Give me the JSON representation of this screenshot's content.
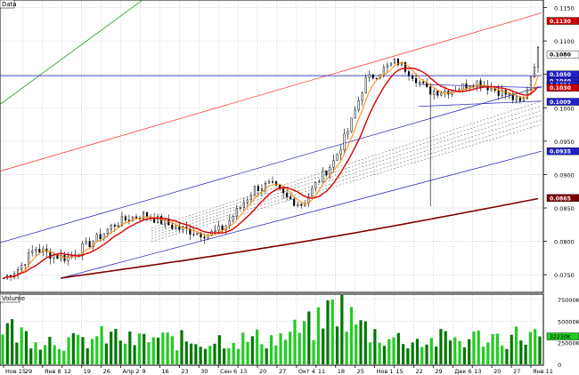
{
  "chart_data": {
    "type": "candlestick",
    "panels": {
      "price": {
        "label": "Data",
        "ylim": [
          0.0725,
          0.116
        ]
      },
      "volume": {
        "label": "Volume",
        "ylim": [
          0,
          80000
        ]
      }
    },
    "price_ticks": [
      "0.1150",
      "0.1100",
      "0.1050",
      "0.1000",
      "0.0950",
      "0.0900",
      "0.0850",
      "0.0800",
      "0.0750"
    ],
    "volume_ticks": [
      "75000K",
      "50000K",
      "25000K",
      "0"
    ],
    "x_tick_labels": [
      "Нов 15",
      "29",
      "Янв 8",
      "12",
      "19",
      "26",
      "Апр 2",
      "9",
      "16",
      "23",
      "30",
      "Сен 6",
      "13",
      "20",
      "27",
      "Окт 4",
      "11",
      "18",
      "25",
      "Нов 1",
      "15",
      "22",
      "29",
      "Дек 6",
      "13",
      "20",
      "27",
      "Янв 11"
    ],
    "value_tags": [
      {
        "label": "0.1130",
        "value": 0.113,
        "color": "#cc0000"
      },
      {
        "label": "0.1080",
        "value": 0.108,
        "color": "#ffffff"
      },
      {
        "label": "0.1050",
        "value": 0.105,
        "color": "#2020cc"
      },
      {
        "label": "0.1040",
        "value": 0.104,
        "color": "#2020cc"
      },
      {
        "label": "0.1034",
        "value": 0.1034,
        "color": "#2020cc"
      },
      {
        "label": "0.1030",
        "value": 0.103,
        "color": "#cc0000"
      },
      {
        "label": "0.1009",
        "value": 0.1009,
        "color": "#2020cc"
      },
      {
        "label": "0.0935",
        "value": 0.0935,
        "color": "#2020cc"
      },
      {
        "label": "0.0865",
        "value": 0.0865,
        "color": "#800000"
      }
    ],
    "volume_tag": {
      "label": "32230K",
      "value": 32230
    },
    "colors": {
      "up_volume": "#22cc22",
      "down_volume": "#007700",
      "ma_fast": "#ff8800",
      "ma_mid": "#dd0000",
      "ma_slow": "#800000",
      "channel_blue": "#3030c0",
      "channel_red": "#ff4040",
      "green_trend": "#22a022",
      "grid": "#aaaaaa"
    },
    "ohlc_anchors": [
      0.0745,
      0.076,
      0.079,
      0.078,
      0.0775,
      0.079,
      0.0805,
      0.0825,
      0.0835,
      0.084,
      0.083,
      0.082,
      0.0815,
      0.081,
      0.082,
      0.085,
      0.088,
      0.0885,
      0.0865,
      0.0855,
      0.089,
      0.092,
      0.097,
      0.104,
      0.1055,
      0.107,
      0.105,
      0.1025,
      0.1025,
      0.103,
      0.104,
      0.103,
      0.102,
      0.1005,
      0.1085
    ],
    "volume_anchors": [
      45000,
      35000,
      30000,
      28000,
      25000,
      30000,
      33000,
      26000,
      30000,
      28000,
      27000,
      26000,
      30000,
      28000,
      30000,
      30000,
      40000,
      45000,
      70000,
      48000,
      36000,
      30000,
      28000,
      26000,
      30000,
      28000,
      32000,
      30000,
      34000,
      32230
    ]
  }
}
